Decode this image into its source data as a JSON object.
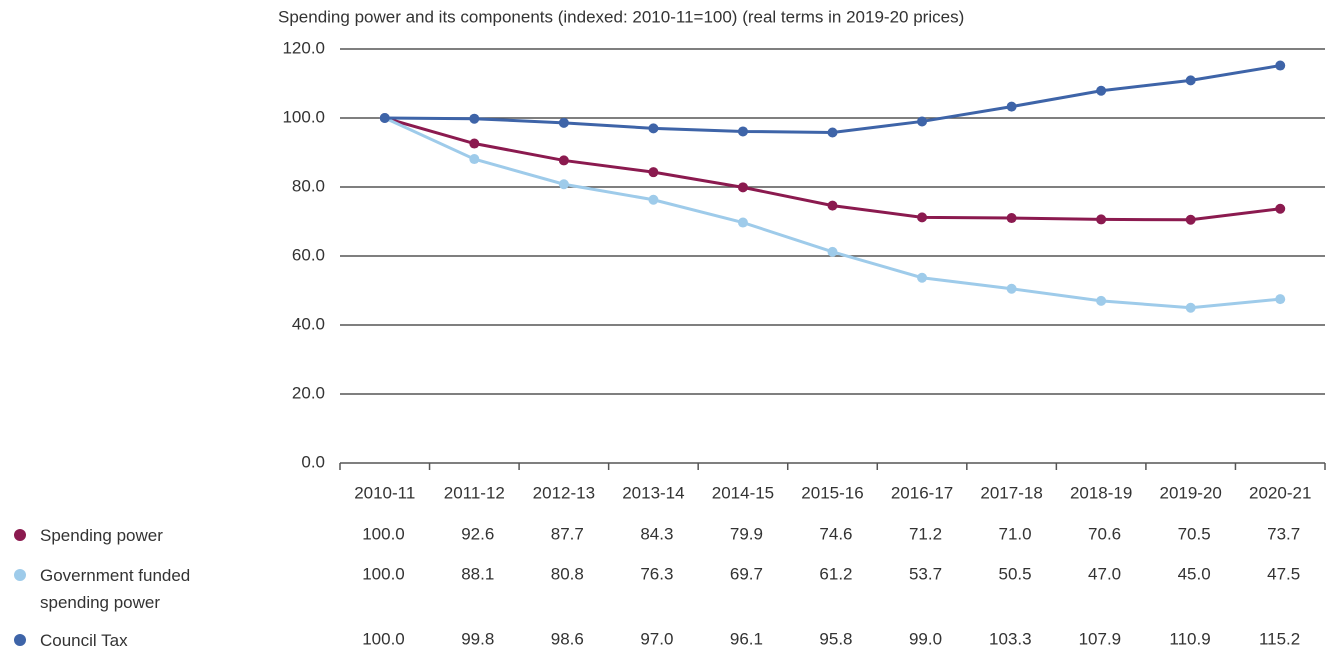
{
  "chart_data": {
    "type": "line",
    "title": "Spending power and its components (indexed: 2010-11=100) (real terms in 2019-20 prices)",
    "categories": [
      "2010-11",
      "2011-12",
      "2012-13",
      "2013-14",
      "2014-15",
      "2015-16",
      "2016-17",
      "2017-18",
      "2018-19",
      "2019-20",
      "2020-21"
    ],
    "series": [
      {
        "name": "Spending power",
        "color": "#8b1a4f",
        "values": [
          100,
          92.6,
          87.7,
          84.3,
          79.9,
          74.6,
          71.2,
          71,
          70.6,
          70.5,
          73.7
        ],
        "value_labels": [
          "100.0",
          "92.6",
          "87.7",
          "84.3",
          "79.9",
          "74.6",
          "71.2",
          "71.0",
          "70.6",
          "70.5",
          "73.7"
        ]
      },
      {
        "name": "Government funded spending power",
        "color": "#9ecbea",
        "values": [
          100,
          88.1,
          80.8,
          76.3,
          69.7,
          61.2,
          53.7,
          50.5,
          47,
          45,
          47.5
        ],
        "value_labels": [
          "100.0",
          "88.1",
          "80.8",
          "76.3",
          "69.7",
          "61.2",
          "53.7",
          "50.5",
          "47.0",
          "45.0",
          "47.5"
        ]
      },
      {
        "name": "Council Tax",
        "color": "#3e64a8",
        "values": [
          100,
          99.8,
          98.6,
          97,
          96.1,
          95.8,
          99,
          103.3,
          107.9,
          110.9,
          115.2
        ],
        "value_labels": [
          "100.0",
          "99.8",
          "98.6",
          "97.0",
          "96.1",
          "95.8",
          "99.0",
          "103.3",
          "107.9",
          "110.9",
          "115.2"
        ]
      }
    ],
    "ylim": [
      0,
      120
    ],
    "yticks": [
      {
        "value": 0,
        "label": "0.0"
      },
      {
        "value": 20,
        "label": "20.0"
      },
      {
        "value": 40,
        "label": "40.0"
      },
      {
        "value": 60,
        "label": "60.0"
      },
      {
        "value": 80,
        "label": "80.0"
      },
      {
        "value": 100,
        "label": "100.0"
      },
      {
        "value": 120,
        "label": "120.0"
      }
    ],
    "grid": true
  }
}
